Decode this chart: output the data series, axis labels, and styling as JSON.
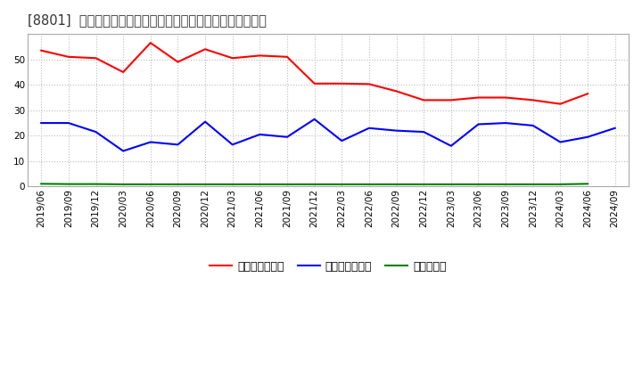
{
  "title": "[8801]  売上債権回転率、買入債務回転率、在庫回転率の推移",
  "x_labels": [
    "2019/06",
    "2019/09",
    "2019/12",
    "2020/03",
    "2020/06",
    "2020/09",
    "2020/12",
    "2021/03",
    "2021/06",
    "2021/09",
    "2021/12",
    "2022/03",
    "2022/06",
    "2022/09",
    "2022/12",
    "2023/03",
    "2023/06",
    "2023/09",
    "2023/12",
    "2024/03",
    "2024/06",
    "2024/09"
  ],
  "receivables_turnover": [
    53.5,
    51.0,
    50.5,
    45.0,
    56.5,
    49.0,
    54.0,
    50.5,
    51.5,
    51.0,
    40.5,
    40.5,
    40.3,
    37.5,
    34.0,
    34.0,
    35.0,
    35.0,
    34.0,
    32.5,
    36.5,
    null
  ],
  "payables_turnover": [
    25.0,
    25.0,
    21.5,
    14.0,
    17.5,
    16.5,
    25.5,
    16.5,
    20.5,
    19.5,
    26.5,
    18.0,
    23.0,
    22.0,
    21.5,
    16.0,
    24.5,
    25.0,
    24.0,
    17.5,
    19.5,
    23.0
  ],
  "inventory_turnover": [
    1.1,
    1.0,
    1.0,
    0.9,
    0.9,
    0.9,
    0.9,
    0.9,
    0.9,
    0.9,
    0.9,
    0.9,
    0.9,
    0.9,
    0.9,
    0.9,
    0.9,
    0.9,
    0.9,
    0.9,
    1.1,
    null
  ],
  "line_colors": {
    "receivables": "#ff0000",
    "payables": "#0000ff",
    "inventory": "#008000"
  },
  "legend_labels": [
    "売上債権回転率",
    "買入債務回転率",
    "在庫回転率"
  ],
  "ylim": [
    0,
    60
  ],
  "yticks": [
    0,
    10,
    20,
    30,
    40,
    50
  ],
  "background_color": "#ffffff",
  "plot_bg_color": "#ffffff",
  "grid_color": "#bbbbbb",
  "title_fontsize": 10.5,
  "tick_fontsize": 7.5,
  "legend_fontsize": 9
}
